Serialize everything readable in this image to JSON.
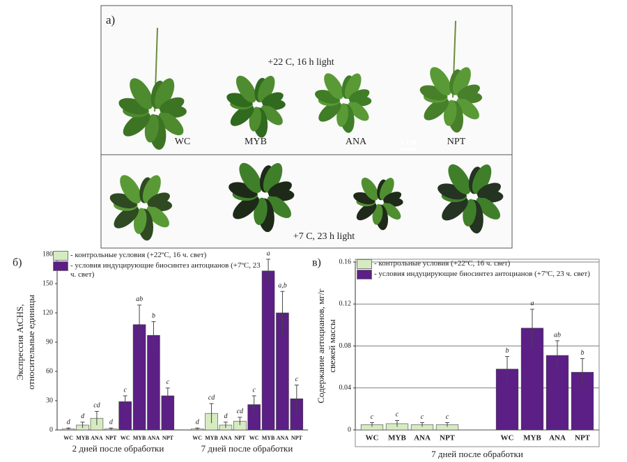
{
  "photo": {
    "label": "а)",
    "top_caption": "+22  C, 16 h light",
    "bottom_caption": "+7  C, 23 h light",
    "lines": [
      "WC",
      "MYB",
      "ANA",
      "NPT"
    ],
    "scale": "1 cm"
  },
  "chart_data": [
    {
      "type": "bar",
      "panel": "б)",
      "ylabel": [
        "Экспрессия AtCHS,",
        "относительные единицы"
      ],
      "categories": [
        "WC",
        "MYB",
        "ANA",
        "NPT",
        "WC",
        "MYB",
        "ANA",
        "NPT",
        "WC",
        "MYB",
        "ANA",
        "NPT",
        "WC",
        "MYB",
        "ANA",
        "NPT"
      ],
      "groups": [
        "2 дней после обработки",
        "7 дней после обработки"
      ],
      "ylim": [
        0,
        180
      ],
      "yticks": [
        0,
        30,
        60,
        90,
        120,
        150,
        180
      ],
      "grid": false,
      "series": [
        {
          "name": "- контрольные условия (+22ºC, 16 ч. свет)",
          "color": "#d6ebc0",
          "values": [
            1,
            5,
            12,
            1,
            null,
            null,
            null,
            null,
            1,
            17,
            5,
            9,
            null,
            null,
            null,
            null
          ],
          "errors": [
            1,
            3,
            7,
            1,
            null,
            null,
            null,
            null,
            1,
            10,
            3,
            4,
            null,
            null,
            null,
            null
          ],
          "letters": [
            "d",
            "d",
            "cd",
            "d",
            null,
            null,
            null,
            null,
            "d",
            "cd",
            "d",
            "cd",
            null,
            null,
            null,
            null
          ]
        },
        {
          "name": "- условия индуцирующие биосинтез антоцианов (+7ºC, 23 ч. свет)",
          "color": "#5b1f86",
          "values": [
            null,
            null,
            null,
            null,
            29,
            108,
            97,
            35,
            null,
            null,
            null,
            null,
            26,
            163,
            120,
            32
          ],
          "errors": [
            null,
            null,
            null,
            null,
            6,
            20,
            14,
            8,
            null,
            null,
            null,
            null,
            9,
            12,
            22,
            14
          ],
          "letters": [
            null,
            null,
            null,
            null,
            "c",
            "ab",
            "b",
            "c",
            null,
            null,
            null,
            null,
            "c",
            "a",
            "a,b",
            "c"
          ]
        }
      ]
    },
    {
      "type": "bar",
      "panel": "в)",
      "ylabel": [
        "Содержание антоцианов, мг/г",
        "свежей массы"
      ],
      "categories": [
        "WC",
        "MYB",
        "ANA",
        "NPT",
        "WC",
        "MYB",
        "ANA",
        "NPT"
      ],
      "groups": [
        "7 дней после обработки"
      ],
      "ylim": [
        0,
        0.16
      ],
      "yticks": [
        0,
        0.04,
        0.08,
        0.12,
        0.16
      ],
      "grid": true,
      "series": [
        {
          "name": "- контрольные условия (+22ºC, 16 ч. свет)",
          "color": "#d6ebc0",
          "values": [
            0.005,
            0.006,
            0.005,
            0.005,
            null,
            null,
            null,
            null
          ],
          "errors": [
            0.002,
            0.003,
            0.002,
            0.002,
            null,
            null,
            null,
            null
          ],
          "letters": [
            "c",
            "c",
            "c",
            "c",
            null,
            null,
            null,
            null
          ]
        },
        {
          "name": "- условия индуцирующие биосинтез антоцианов (+7ºC, 23 ч. свет)",
          "color": "#5b1f86",
          "values": [
            null,
            null,
            null,
            null,
            0.058,
            0.097,
            0.071,
            0.055
          ],
          "errors": [
            null,
            null,
            null,
            null,
            0.012,
            0.018,
            0.014,
            0.013
          ],
          "letters": [
            null,
            null,
            null,
            null,
            "b",
            "a",
            "ab",
            "b"
          ]
        }
      ]
    }
  ]
}
